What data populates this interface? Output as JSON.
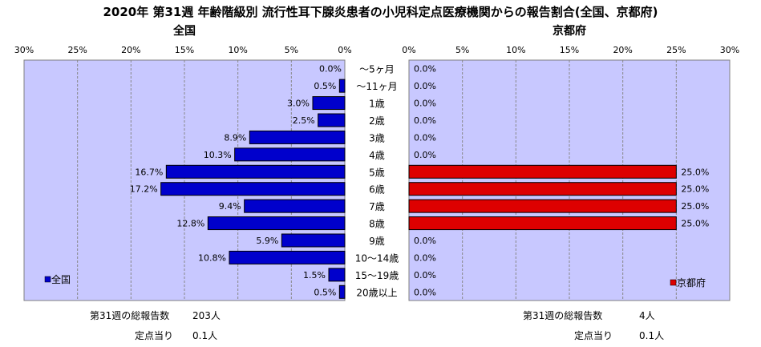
{
  "title": "2020年 第31週 年齢階級別 流行性耳下腺炎患者の小児科定点医療機関からの報告割合(全国、京都府)",
  "left_panel_title": "全国",
  "right_panel_title": "京都府",
  "colors": {
    "plot_bg": "#c8c8ff",
    "zenkoku_bar": "#0000cc",
    "kyoto_bar": "#dd0000",
    "grid": "#888888"
  },
  "chart_data": [
    {
      "name": "全国",
      "type": "bar",
      "orientation": "horizontal",
      "direction": "leftward",
      "xlim": [
        0,
        30
      ],
      "ticks": [
        "30%",
        "25%",
        "20%",
        "15%",
        "10%",
        "5%",
        "0%"
      ],
      "legend": "全国",
      "legend_position": "bottom-left",
      "categories": [
        "～5ヶ月",
        "～11ヶ月",
        "1歳",
        "2歳",
        "3歳",
        "4歳",
        "5歳",
        "6歳",
        "7歳",
        "8歳",
        "9歳",
        "10～14歳",
        "15～19歳",
        "20歳以上"
      ],
      "values": [
        0.0,
        0.5,
        3.0,
        2.5,
        8.9,
        10.3,
        16.7,
        17.2,
        9.4,
        12.8,
        5.9,
        10.8,
        1.5,
        0.5
      ],
      "labels": [
        "0.0%",
        "0.5%",
        "3.0%",
        "2.5%",
        "8.9%",
        "10.3%",
        "16.7%",
        "17.2%",
        "9.4%",
        "12.8%",
        "5.9%",
        "10.8%",
        "1.5%",
        "0.5%"
      ]
    },
    {
      "name": "京都府",
      "type": "bar",
      "orientation": "horizontal",
      "direction": "rightward",
      "xlim": [
        0,
        30
      ],
      "ticks": [
        "0%",
        "5%",
        "10%",
        "15%",
        "20%",
        "25%",
        "30%"
      ],
      "legend": "京都府",
      "legend_position": "bottom-right",
      "categories": [
        "～5ヶ月",
        "～11ヶ月",
        "1歳",
        "2歳",
        "3歳",
        "4歳",
        "5歳",
        "6歳",
        "7歳",
        "8歳",
        "9歳",
        "10～14歳",
        "15～19歳",
        "20歳以上"
      ],
      "values": [
        0.0,
        0.0,
        0.0,
        0.0,
        0.0,
        0.0,
        25.0,
        25.0,
        25.0,
        25.0,
        0.0,
        0.0,
        0.0,
        0.0
      ],
      "labels": [
        "0.0%",
        "0.0%",
        "0.0%",
        "0.0%",
        "0.0%",
        "0.0%",
        "25.0%",
        "25.0%",
        "25.0%",
        "25.0%",
        "0.0%",
        "0.0%",
        "0.0%",
        "0.0%"
      ]
    }
  ],
  "left_stats": {
    "total_label": "第31週の総報告数",
    "total_value": "203人",
    "per_label": "定点当り",
    "per_value": "0.1人"
  },
  "right_stats": {
    "total_label": "第31週の総報告数",
    "total_value": "4人",
    "per_label": "定点当り",
    "per_value": "0.1人"
  }
}
